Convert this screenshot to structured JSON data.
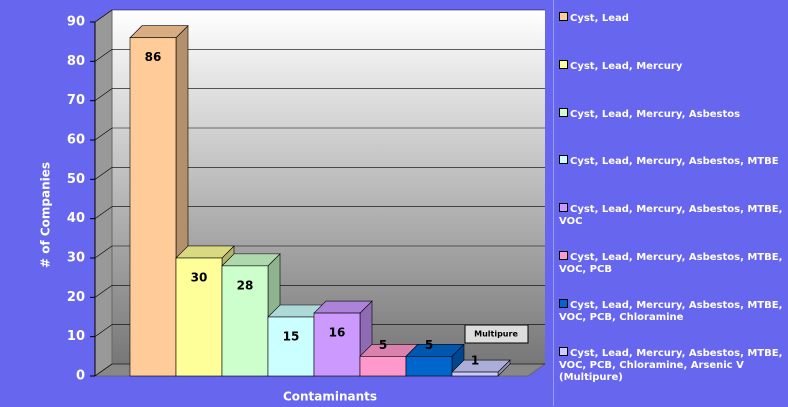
{
  "chart_data": {
    "type": "bar3d",
    "ylabel": "# of Companies",
    "xlabel": "Contaminants",
    "annotation": "Multipure",
    "ylim": [
      0,
      90
    ],
    "yticks": [
      0,
      10,
      20,
      30,
      40,
      50,
      60,
      70,
      80,
      90
    ],
    "grid": true,
    "series": [
      {
        "name": "Cyst, Lead",
        "color": "#ffcc99",
        "values": [
          86
        ]
      },
      {
        "name": "Cyst, Lead, Mercury",
        "color": "#ffff99",
        "values": [
          30
        ]
      },
      {
        "name": "Cyst, Lead, Mercury, Asbestos",
        "color": "#ccffcc",
        "values": [
          28
        ]
      },
      {
        "name": "Cyst, Lead, Mercury, Asbestos, MTBE",
        "color": "#ccffff",
        "values": [
          15
        ]
      },
      {
        "name": "Cyst, Lead, Mercury, Asbestos, MTBE, VOC",
        "color": "#cc99ff",
        "values": [
          16
        ]
      },
      {
        "name": "Cyst, Lead, Mercury, Asbestos, MTBE, VOC, PCB",
        "color": "#ff99cc",
        "values": [
          5
        ]
      },
      {
        "name": "Cyst, Lead, Mercury, Asbestos, MTBE, VOC, PCB, Chloramine",
        "color": "#0066cc",
        "values": [
          5
        ]
      },
      {
        "name": "Cyst, Lead, Mercury, Asbestos, MTBE, VOC, PCB, Chloramine, Arsenic V  (Multipure)",
        "color": "#ccccff",
        "values": [
          1
        ]
      }
    ]
  }
}
